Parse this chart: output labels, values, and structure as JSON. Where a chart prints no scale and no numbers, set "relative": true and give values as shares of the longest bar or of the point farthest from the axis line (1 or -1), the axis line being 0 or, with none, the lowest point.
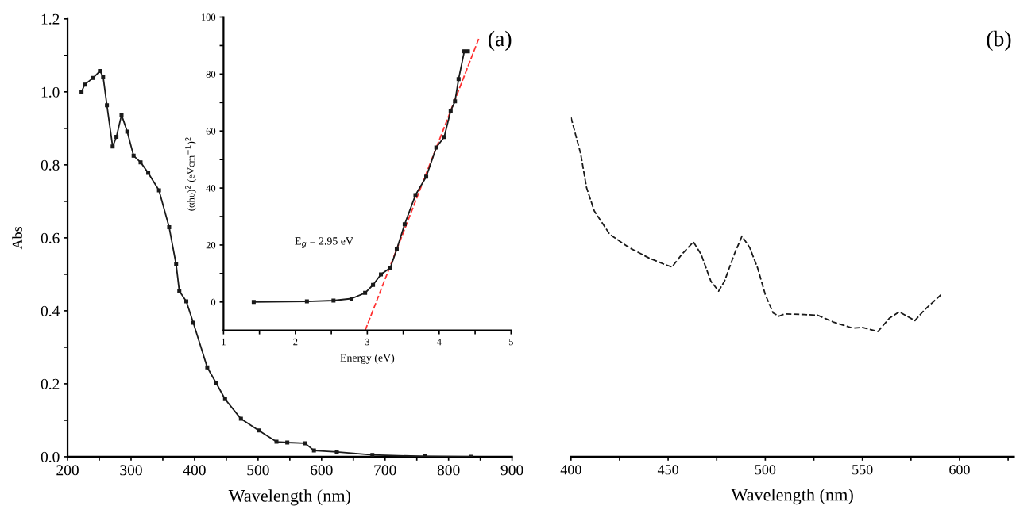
{
  "chart_data": [
    {
      "type": "line",
      "xlabel": "Wavelength (nm)",
      "ylabel": "Abs",
      "xlim": [
        200,
        900
      ],
      "ylim": [
        0,
        1.2
      ],
      "xticks": [
        200,
        {
          "value": 250,
          "label": null
        },
        300,
        {
          "value": 350,
          "label": null
        },
        400,
        {
          "value": 450,
          "label": null
        },
        500,
        {
          "value": 550,
          "label": null
        },
        600,
        {
          "value": 650,
          "label": null
        },
        700,
        {
          "value": 750,
          "label": null
        },
        800,
        {
          "value": 850,
          "label": null
        },
        900
      ],
      "yticks": [
        {
          "value": 0,
          "label": "0.0"
        },
        {
          "value": 0.1,
          "label": null
        },
        0.2,
        {
          "value": 0.3,
          "label": null
        },
        0.4,
        {
          "value": 0.5,
          "label": null
        },
        0.6,
        {
          "value": 0.7,
          "label": null
        },
        0.8,
        {
          "value": 0.9,
          "label": null
        },
        {
          "value": 1.0,
          "label": "1.0"
        },
        {
          "value": 1.1,
          "label": null
        },
        1.2
      ],
      "marker": "square",
      "line_style": "solid",
      "annotations": [
        "(a)"
      ],
      "series": [
        {
          "color": "#1a1a1a",
          "x": [
            222,
            227,
            240,
            251,
            256,
            262,
            271,
            277,
            285,
            294,
            304,
            315,
            327,
            344,
            360,
            371,
            376,
            387,
            398,
            420,
            434,
            448,
            473,
            501,
            529,
            546,
            574,
            588,
            624,
            680,
            763,
            836
          ],
          "values": [
            1.0,
            1.02,
            1.038,
            1.057,
            1.042,
            0.963,
            0.85,
            0.877,
            0.937,
            0.891,
            0.825,
            0.807,
            0.778,
            0.73,
            0.629,
            0.527,
            0.454,
            0.426,
            0.367,
            0.245,
            0.202,
            0.158,
            0.104,
            0.072,
            0.041,
            0.039,
            0.037,
            0.017,
            0.013,
            0.005,
            0.001,
            0
          ]
        }
      ]
    },
    {
      "type": "line",
      "xlabel": "Energy (eV)",
      "ylabel": "(αhυ)$^{2}$ (eVcm$^{−1}$)$^{2}$",
      "xlim": [
        1,
        5
      ],
      "ylim": [
        -10,
        100
      ],
      "xticks": [
        1,
        {
          "value": 1.5,
          "label": null
        },
        2,
        {
          "value": 2.5,
          "label": null
        },
        3,
        {
          "value": 3.5,
          "label": null
        },
        4,
        {
          "value": 4.5,
          "label": null
        },
        5
      ],
      "yticks": [
        0,
        {
          "value": 10,
          "label": null
        },
        20,
        {
          "value": 30,
          "label": null
        },
        40,
        {
          "value": 50,
          "label": null
        },
        60,
        {
          "value": 70,
          "label": null
        },
        80,
        {
          "value": 90,
          "label": null
        },
        100
      ],
      "annotations": [
        "E$_{g}$ = 2.95 eV"
      ],
      "series": [
        {
          "color": "#1a1a1a",
          "marker": "square",
          "line_style": "solid",
          "x": [
            1.42,
            2.16,
            2.53,
            2.78,
            2.97,
            3.08,
            3.19,
            3.32,
            3.41,
            3.52,
            3.67,
            3.82,
            3.96,
            4.07,
            4.16,
            4.22,
            4.27,
            4.35,
            4.4
          ],
          "values": [
            0,
            0.2,
            0.5,
            1.2,
            3.2,
            6.0,
            9.7,
            12.0,
            18.5,
            27.3,
            37.5,
            44.0,
            54.2,
            57.9,
            67.1,
            70.4,
            78.2,
            88.0,
            88.0
          ]
        },
        {
          "color": "#ff3030",
          "marker": "none",
          "line_style": "dashed",
          "x": [
            2.97,
            4.56
          ],
          "values": [
            -10,
            93
          ]
        }
      ]
    },
    {
      "type": "line",
      "xlabel": "Wavelength (nm)",
      "relative": true,
      "xlim": [
        400,
        628
      ],
      "tick_labels": "x",
      "xticks": [
        400,
        {
          "value": 425,
          "label": null
        },
        450,
        {
          "value": 475,
          "label": null
        },
        500,
        {
          "value": 525,
          "label": null
        },
        550,
        {
          "value": 575,
          "label": null
        },
        600,
        {
          "value": 625,
          "label": null
        }
      ],
      "marker": "none",
      "line_style": "dashed",
      "annotations": [
        "(b)"
      ],
      "series": [
        {
          "color": "#1a1a1a",
          "x": [
            400,
            405,
            408,
            412,
            420,
            430,
            440,
            448,
            452,
            457,
            463,
            467,
            472,
            476,
            479,
            484,
            488,
            492,
            496,
            500,
            504,
            507,
            510,
            520,
            527,
            535,
            545,
            550,
            558,
            564,
            569,
            573,
            577,
            582,
            591
          ],
          "values": [
            1.0,
            0.892,
            0.793,
            0.724,
            0.655,
            0.616,
            0.586,
            0.567,
            0.559,
            0.596,
            0.633,
            0.596,
            0.517,
            0.488,
            0.517,
            0.596,
            0.65,
            0.616,
            0.557,
            0.478,
            0.424,
            0.414,
            0.421,
            0.419,
            0.417,
            0.397,
            0.379,
            0.381,
            0.369,
            0.409,
            0.427,
            0.414,
            0.401,
            0.433,
            0.48
          ]
        }
      ]
    }
  ]
}
